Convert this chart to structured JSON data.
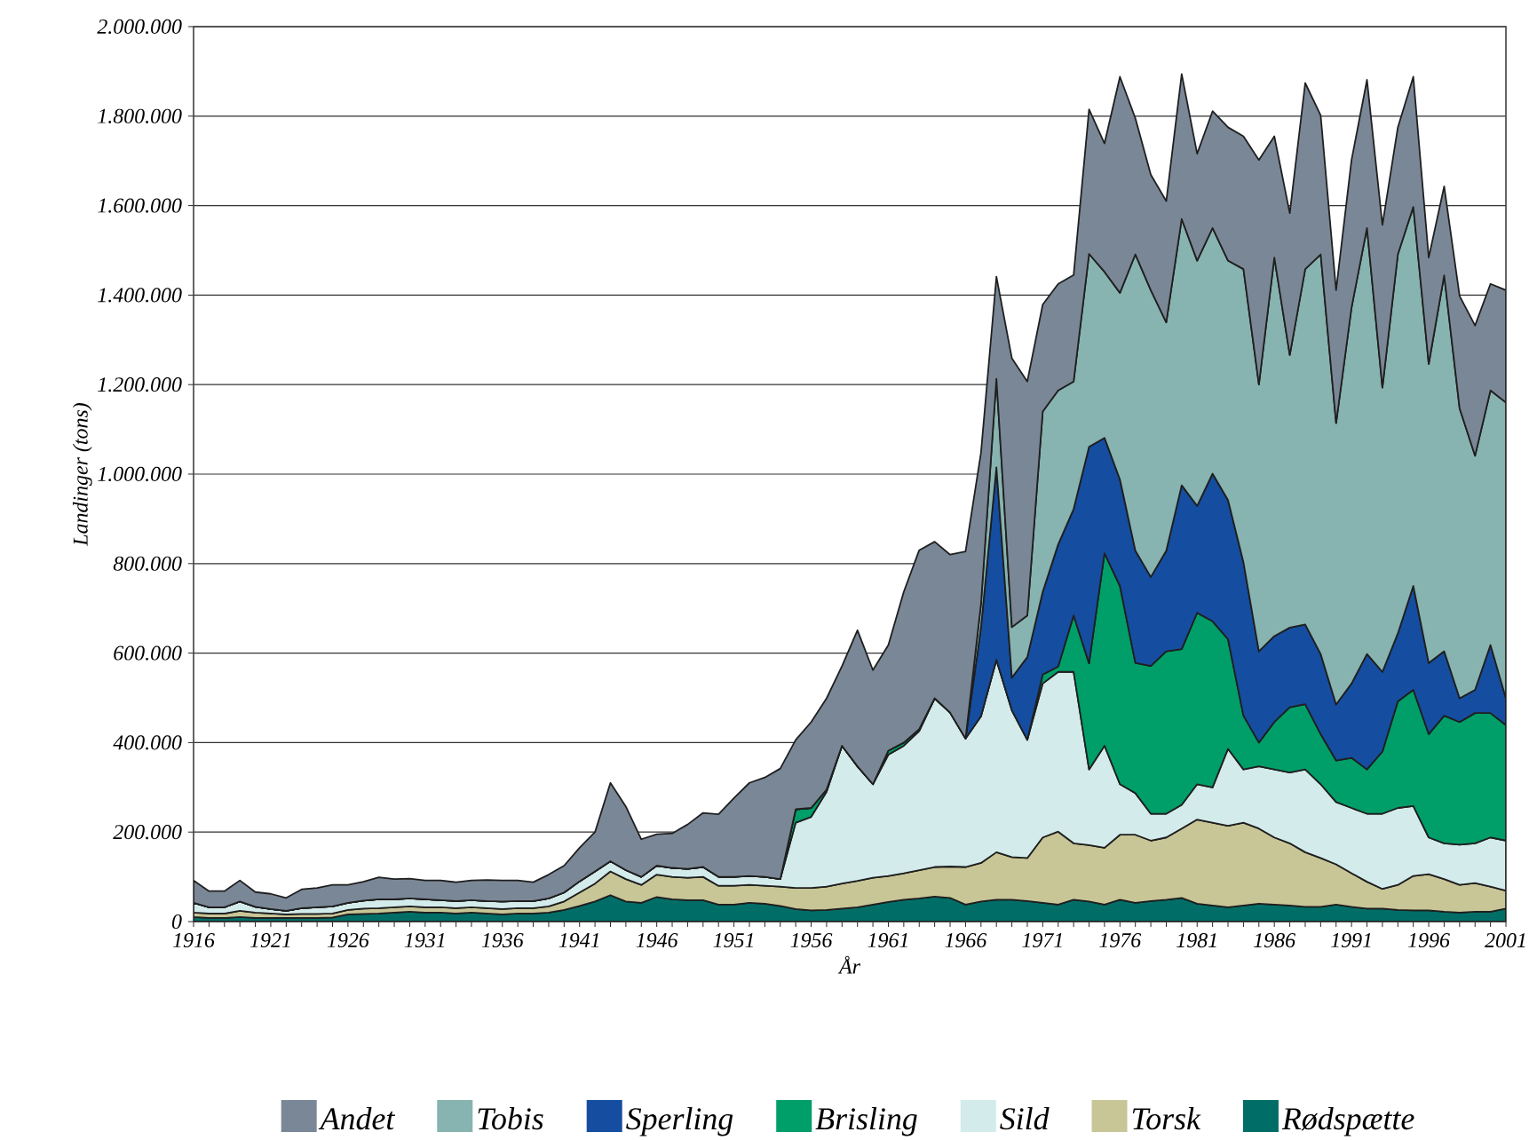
{
  "chart_data": {
    "type": "area",
    "stacked": true,
    "xlabel": "År",
    "ylabel": "Landinger (tons)",
    "x": [
      1916,
      1917,
      1918,
      1919,
      1920,
      1921,
      1922,
      1923,
      1924,
      1925,
      1926,
      1927,
      1928,
      1929,
      1930,
      1931,
      1932,
      1933,
      1934,
      1935,
      1936,
      1937,
      1938,
      1939,
      1940,
      1941,
      1942,
      1943,
      1944,
      1945,
      1946,
      1947,
      1948,
      1949,
      1950,
      1951,
      1952,
      1953,
      1954,
      1955,
      1956,
      1957,
      1958,
      1959,
      1960,
      1961,
      1962,
      1963,
      1964,
      1965,
      1966,
      1967,
      1968,
      1969,
      1970,
      1971,
      1972,
      1973,
      1974,
      1975,
      1976,
      1977,
      1978,
      1979,
      1980,
      1981,
      1982,
      1983,
      1984,
      1985,
      1986,
      1987,
      1988,
      1989,
      1990,
      1991,
      1992,
      1993,
      1994,
      1995,
      1996,
      1997,
      1998,
      1999,
      2000,
      2001
    ],
    "xlim": [
      1916,
      2001
    ],
    "xticks": [
      1916,
      1921,
      1926,
      1931,
      1936,
      1941,
      1946,
      1951,
      1956,
      1961,
      1966,
      1971,
      1976,
      1981,
      1986,
      1991,
      1996,
      2001
    ],
    "ylim": [
      0,
      2000000
    ],
    "yticks": [
      0,
      {
        "value": 200000,
        "label": "200.000"
      },
      {
        "value": 400000,
        "label": "400.000"
      },
      {
        "value": 600000,
        "label": "600.000"
      },
      {
        "value": 800000,
        "label": "800.000"
      },
      {
        "value": 1000000,
        "label": "1.000.000"
      },
      {
        "value": 1200000,
        "label": "1.200.000"
      },
      {
        "value": 1400000,
        "label": "1.400.000"
      },
      {
        "value": 1600000,
        "label": "1.600.000"
      },
      {
        "value": 1800000,
        "label": "1.800.000"
      },
      {
        "value": 2000000,
        "label": "2.000.000"
      }
    ],
    "grid": "y",
    "legend": "bottom",
    "series": [
      {
        "name": "Rødspætte",
        "color": "#006e66",
        "values": [
          10000,
          8000,
          8000,
          10000,
          8000,
          8000,
          8000,
          8000,
          8000,
          9000,
          16000,
          17000,
          18000,
          20000,
          22000,
          20000,
          20000,
          18000,
          20000,
          18000,
          16000,
          18000,
          18000,
          20000,
          26000,
          35000,
          45000,
          59000,
          45000,
          42000,
          55000,
          50000,
          48000,
          48000,
          38000,
          38000,
          42000,
          40000,
          35000,
          28000,
          25000,
          26000,
          29000,
          32000,
          38000,
          44000,
          49000,
          52000,
          56000,
          53000,
          38000,
          45000,
          49000,
          49000,
          46000,
          42000,
          38000,
          49000,
          45000,
          38000,
          49000,
          42000,
          46000,
          49000,
          53000,
          40000,
          36000,
          32000,
          36000,
          40000,
          38000,
          36000,
          33000,
          33000,
          38000,
          33000,
          29000,
          29000,
          26000,
          25000,
          25000,
          22000,
          20000,
          22000,
          22000,
          29000
        ]
      },
      {
        "name": "Torsk",
        "color": "#c8c597",
        "values": [
          10000,
          10000,
          10000,
          14000,
          12000,
          10000,
          8000,
          9000,
          9000,
          9000,
          10000,
          12000,
          12000,
          12000,
          12000,
          12000,
          12000,
          12000,
          12000,
          12000,
          12000,
          12000,
          12000,
          14000,
          19000,
          30000,
          40000,
          53000,
          50000,
          40000,
          50000,
          50000,
          50000,
          52000,
          42000,
          42000,
          40000,
          40000,
          43000,
          47000,
          50000,
          52000,
          56000,
          59000,
          60000,
          58000,
          59000,
          63000,
          66000,
          70000,
          84000,
          86000,
          106000,
          95000,
          96000,
          146000,
          163000,
          126000,
          126000,
          127000,
          145000,
          152000,
          135000,
          139000,
          155000,
          188000,
          185000,
          182000,
          185000,
          168000,
          150000,
          139000,
          122000,
          109000,
          90000,
          75000,
          60000,
          44000,
          56000,
          77000,
          81000,
          73000,
          62000,
          64000,
          56000,
          40000
        ]
      },
      {
        "name": "Sild",
        "color": "#d3ebeb",
        "values": [
          22000,
          14000,
          14000,
          21000,
          13000,
          10000,
          8000,
          13000,
          15000,
          16000,
          16000,
          18000,
          20000,
          18000,
          18000,
          18000,
          16000,
          16000,
          16000,
          16000,
          17000,
          16000,
          16000,
          18000,
          20000,
          25000,
          27000,
          23000,
          20000,
          18000,
          20000,
          20000,
          20000,
          22000,
          20000,
          20000,
          20000,
          20000,
          17000,
          146000,
          159000,
          212000,
          308000,
          256000,
          209000,
          271000,
          285000,
          311000,
          377000,
          344000,
          287000,
          328000,
          430000,
          328000,
          264000,
          344000,
          357000,
          383000,
          169000,
          228000,
          113000,
          93000,
          60000,
          53000,
          53000,
          79000,
          79000,
          172000,
          119000,
          139000,
          152000,
          158000,
          185000,
          165000,
          139000,
          146000,
          152000,
          168000,
          172000,
          156000,
          82000,
          80000,
          90000,
          89000,
          110000,
          112000
        ]
      },
      {
        "name": "Brisling",
        "color": "#009e68",
        "values": [
          0,
          0,
          0,
          0,
          0,
          0,
          0,
          0,
          0,
          0,
          0,
          0,
          0,
          0,
          0,
          0,
          0,
          0,
          0,
          0,
          0,
          0,
          0,
          0,
          0,
          0,
          0,
          0,
          0,
          0,
          0,
          0,
          0,
          0,
          0,
          0,
          0,
          0,
          0,
          30000,
          20000,
          5000,
          0,
          0,
          0,
          9000,
          7000,
          4000,
          0,
          0,
          0,
          0,
          0,
          0,
          0,
          20000,
          12000,
          126000,
          237000,
          430000,
          443000,
          291000,
          330000,
          363000,
          348000,
          383000,
          371000,
          245000,
          120000,
          53000,
          106000,
          146000,
          146000,
          112000,
          93000,
          112000,
          99000,
          139000,
          238000,
          260000,
          231000,
          285000,
          274000,
          291000,
          278000,
          258000
        ]
      },
      {
        "name": "Sperling",
        "color": "#154da0",
        "values": [
          0,
          0,
          0,
          0,
          0,
          0,
          0,
          0,
          0,
          0,
          0,
          0,
          0,
          0,
          0,
          0,
          0,
          0,
          0,
          0,
          0,
          0,
          0,
          0,
          0,
          0,
          0,
          0,
          0,
          0,
          0,
          0,
          0,
          0,
          0,
          0,
          0,
          0,
          0,
          0,
          0,
          0,
          0,
          0,
          0,
          0,
          0,
          0,
          0,
          0,
          0,
          198000,
          430000,
          73000,
          185000,
          185000,
          273000,
          238000,
          484000,
          258000,
          238000,
          251000,
          199000,
          225000,
          366000,
          239000,
          330000,
          311000,
          343000,
          204000,
          192000,
          178000,
          178000,
          179000,
          125000,
          166000,
          258000,
          178000,
          152000,
          232000,
          159000,
          144000,
          53000,
          52000,
          152000,
          60000
        ]
      },
      {
        "name": "Tobis",
        "color": "#87b3b0",
        "values": [
          0,
          0,
          0,
          0,
          0,
          0,
          0,
          0,
          0,
          0,
          0,
          0,
          0,
          0,
          0,
          0,
          0,
          0,
          0,
          0,
          0,
          0,
          0,
          0,
          0,
          0,
          0,
          0,
          0,
          0,
          0,
          0,
          0,
          0,
          0,
          0,
          0,
          0,
          0,
          0,
          0,
          0,
          0,
          0,
          0,
          0,
          0,
          0,
          0,
          0,
          0,
          53000,
          198000,
          113000,
          93000,
          403000,
          344000,
          285000,
          431000,
          371000,
          417000,
          662000,
          641000,
          510000,
          595000,
          548000,
          549000,
          535000,
          655000,
          596000,
          846000,
          609000,
          794000,
          893000,
          629000,
          840000,
          952000,
          635000,
          847000,
          847000,
          668000,
          840000,
          648000,
          523000,
          569000,
          661000
        ]
      },
      {
        "name": "Andet",
        "color": "#7a8796",
        "values": [
          50000,
          36000,
          36000,
          47000,
          33000,
          34000,
          29000,
          42000,
          43000,
          48000,
          40000,
          42000,
          49000,
          45000,
          44000,
          42000,
          44000,
          42000,
          44000,
          47000,
          47000,
          46000,
          42000,
          53000,
          60000,
          75000,
          88000,
          175000,
          142000,
          84000,
          70000,
          77000,
          99000,
          121000,
          140000,
          176000,
          208000,
          222000,
          247000,
          155000,
          192000,
          204000,
          178000,
          304000,
          255000,
          236000,
          337000,
          400000,
          350000,
          353000,
          418000,
          338000,
          228000,
          601000,
          523000,
          239000,
          238000,
          238000,
          323000,
          287000,
          483000,
          304000,
          258000,
          271000,
          324000,
          239000,
          261000,
          298000,
          297000,
          502000,
          271000,
          317000,
          416000,
          311000,
          297000,
          330000,
          331000,
          364000,
          284000,
          291000,
          238000,
          199000,
          251000,
          291000,
          238000,
          251000
        ]
      }
    ]
  }
}
